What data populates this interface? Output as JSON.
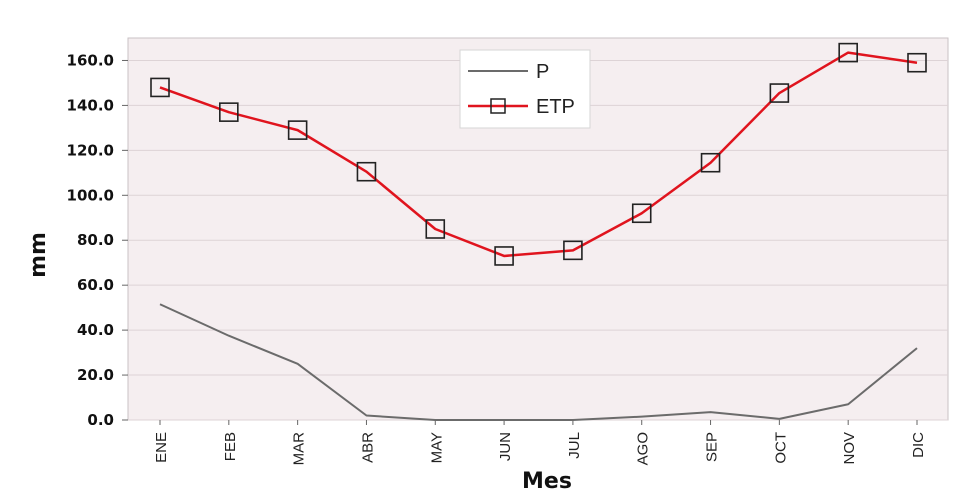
{
  "chart_data": {
    "type": "line",
    "categories": [
      "ENE",
      "FEB",
      "MAR",
      "ABR",
      "MAY",
      "JUN",
      "JUL",
      "AGO",
      "SEP",
      "OCT",
      "NOV",
      "DIC"
    ],
    "series": [
      {
        "name": "P",
        "color": "#6b6b6b",
        "marker": "none",
        "values": [
          51.5,
          37.5,
          25.0,
          2.0,
          0.0,
          0.0,
          0.0,
          1.5,
          3.5,
          0.5,
          7.0,
          32.0
        ]
      },
      {
        "name": "ETP",
        "color": "#e0141e",
        "marker": "square",
        "values": [
          148.0,
          137.0,
          129.0,
          110.5,
          85.0,
          73.0,
          75.5,
          92.0,
          114.5,
          145.5,
          163.5,
          159.0
        ]
      }
    ],
    "xlabel": "Mes",
    "ylabel": "mm",
    "ylim": [
      0,
      170
    ],
    "yticks": [
      "0.0",
      "20.0",
      "40.0",
      "60.0",
      "80.0",
      "100.0",
      "120.0",
      "140.0",
      "160.0"
    ],
    "grid": true,
    "legend_position": "top-center",
    "plot_background": "#f5eef0"
  }
}
